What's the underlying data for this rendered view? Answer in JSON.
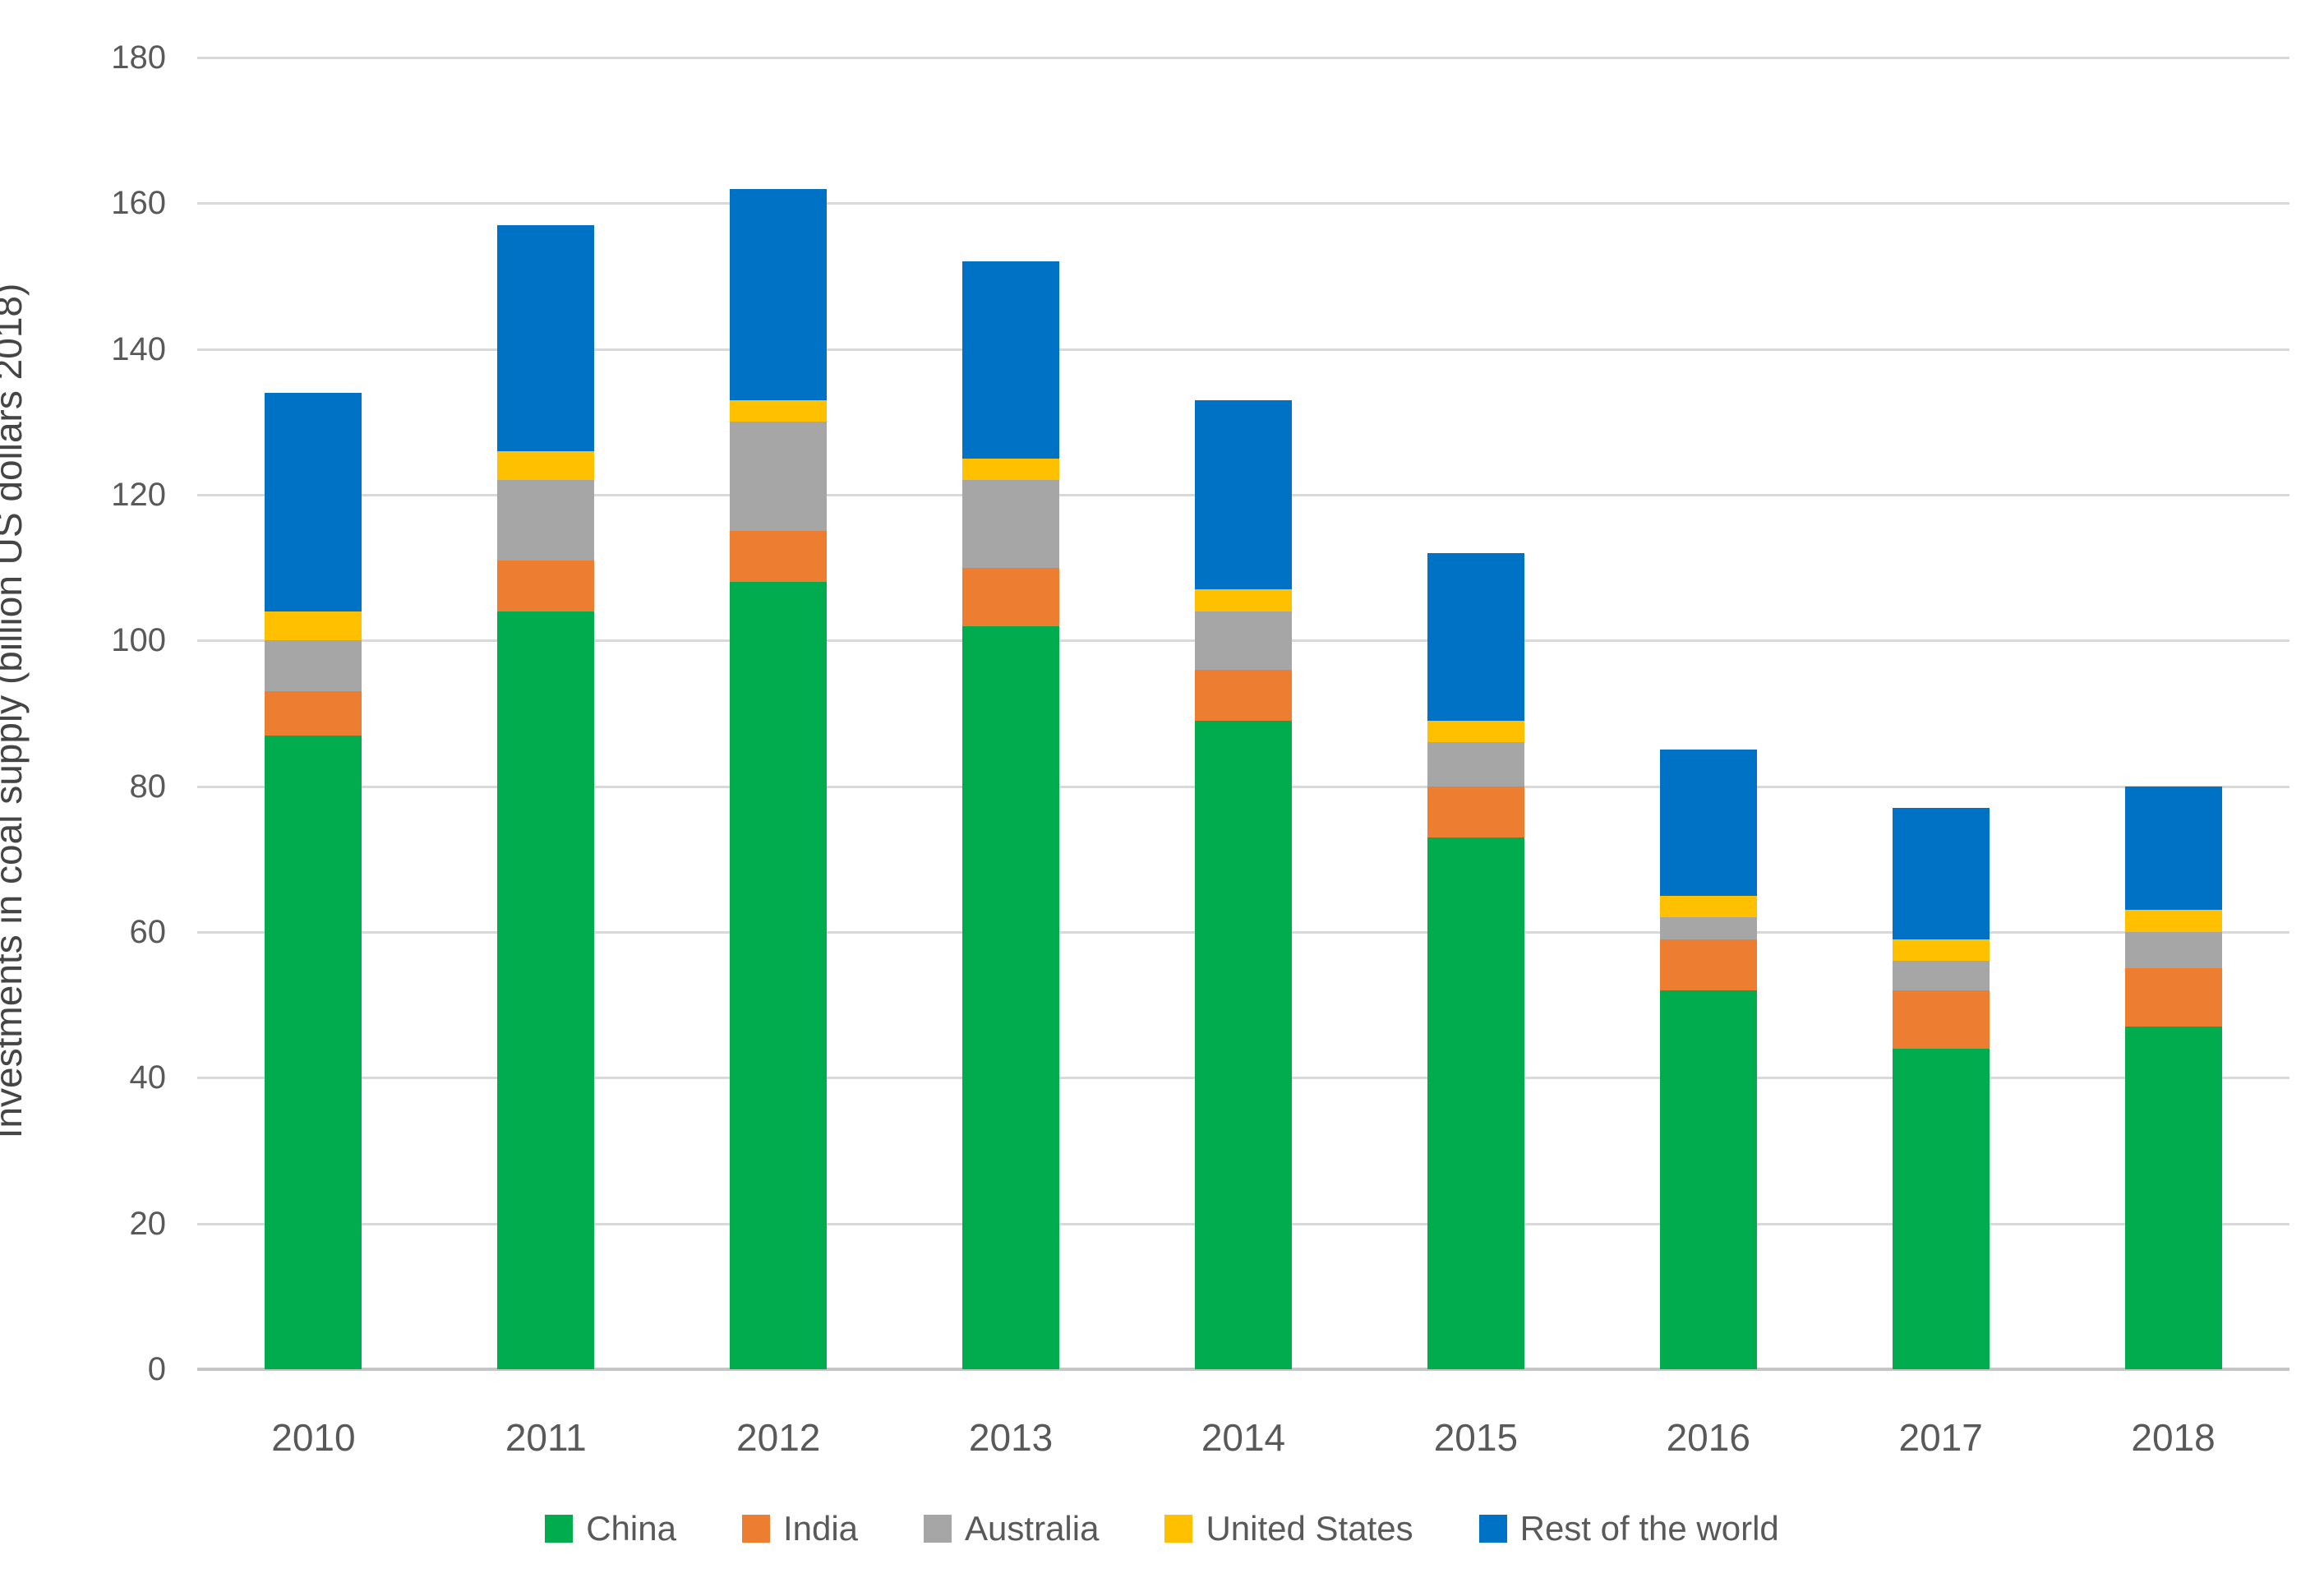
{
  "chart_data": {
    "type": "bar",
    "stacked": true,
    "title": "",
    "xlabel": "",
    "ylabel": "Investments in coal supply (billion US dollars 2018)",
    "categories": [
      "2010",
      "2011",
      "2012",
      "2013",
      "2014",
      "2015",
      "2016",
      "2017",
      "2018"
    ],
    "series": [
      {
        "name": "China",
        "color": "#00AC4E",
        "values": [
          87,
          104,
          108,
          102,
          89,
          73,
          52,
          44,
          47
        ]
      },
      {
        "name": "India",
        "color": "#ED7D31",
        "values": [
          6,
          7,
          7,
          8,
          7,
          7,
          7,
          8,
          8
        ]
      },
      {
        "name": "Australia",
        "color": "#A6A6A6",
        "values": [
          7,
          11,
          15,
          12,
          8,
          6,
          3,
          4,
          5
        ]
      },
      {
        "name": "United States",
        "color": "#FFC000",
        "values": [
          4,
          4,
          3,
          3,
          3,
          3,
          3,
          3,
          3
        ]
      },
      {
        "name": "Rest of the world",
        "color": "#0072C6",
        "values": [
          30,
          31,
          29,
          27,
          26,
          23,
          20,
          18,
          17
        ]
      }
    ],
    "totals": [
      134,
      157,
      162,
      152,
      133,
      112,
      85,
      77,
      80
    ],
    "ylim": [
      0,
      180
    ],
    "ytick_step": 20,
    "yticks": [
      "0",
      "20",
      "40",
      "60",
      "80",
      "100",
      "120",
      "140",
      "160",
      "180"
    ],
    "grid": "horizontal",
    "legend_position": "bottom"
  },
  "colors": {
    "grid": "#d9d9d9",
    "zero_axis": "#c6c6c6",
    "tick_text": "#595959",
    "axis_title_text": "#454545",
    "background": "#ffffff"
  }
}
